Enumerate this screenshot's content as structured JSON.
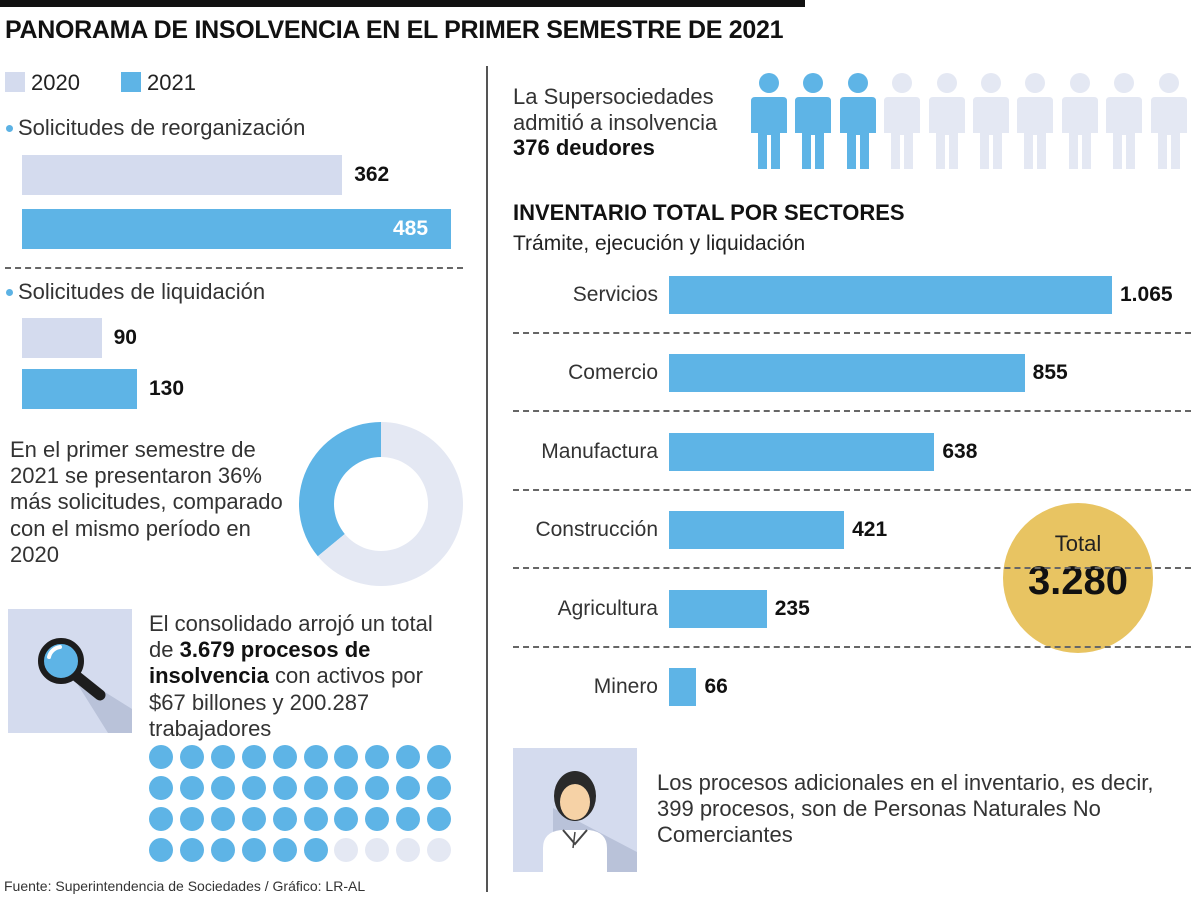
{
  "title": "PANORAMA DE INSOLVENCIA EN EL PRIMER SEMESTRE DE 2021",
  "legend": [
    {
      "label": "2020",
      "color": "#d4dbee"
    },
    {
      "label": "2021",
      "color": "#5eb4e6"
    }
  ],
  "reorganizacion": {
    "label": "Solicitudes de reorganización"
  },
  "liquidacion": {
    "label": "Solicitudes de liquidación"
  },
  "donut_text": "En el primer semestre de 2021 se presentaron 36% más solicitudes, comparado con el mismo período en 2020",
  "consolidado": {
    "pre": "El consolidado arrojó un total de ",
    "bold": "3.679 procesos de insolvencia",
    "post": " con activos por $67 billones y 200.287 trabajadores"
  },
  "admitidos": {
    "line1": "La Supersociedades",
    "line2": "admitió a insolvencia",
    "line3": "376 deudores"
  },
  "inventario": {
    "title": "INVENTARIO TOTAL POR SECTORES",
    "subtitle": "Trámite, ejecución y liquidación"
  },
  "total": {
    "label": "Total",
    "value": "3.280"
  },
  "personas": "Los procesos adicionales en el inventario, es decir, 399 procesos, son de Personas Naturales No Comerciantes",
  "footer": "Fuente: Superintendencia de Sociedades / Gráfico: LR-AL",
  "icons": {
    "magnifier": "magnifier-icon",
    "person": "person-icon",
    "woman": "woman-avatar-icon"
  },
  "chart_data": [
    {
      "type": "bar",
      "name_ref": "reorganizacion",
      "categories": [
        "2020",
        "2021"
      ],
      "values": [
        362,
        485
      ],
      "value_labels": [
        "362",
        "485"
      ]
    },
    {
      "type": "bar",
      "name_ref": "liquidacion",
      "categories": [
        "2020",
        "2021"
      ],
      "values": [
        90,
        130
      ],
      "value_labels": [
        "90",
        "130"
      ]
    },
    {
      "type": "pie",
      "variant": "donut",
      "values": [
        36,
        64
      ],
      "colors": [
        "#5eb4e6",
        "#e4e8f3"
      ]
    },
    {
      "type": "bar",
      "orientation": "horizontal",
      "categories": [
        "Servicios",
        "Comercio",
        "Manufactura",
        "Construcción",
        "Agricultura",
        "Minero"
      ],
      "values": [
        1065,
        855,
        638,
        421,
        235,
        66
      ],
      "value_labels": [
        "1.065",
        "855",
        "638",
        "421",
        "235",
        "66"
      ]
    },
    {
      "type": "pictogram",
      "total": 10,
      "filled": 3
    },
    {
      "type": "pictogram",
      "total": 40,
      "filled": 36
    }
  ]
}
